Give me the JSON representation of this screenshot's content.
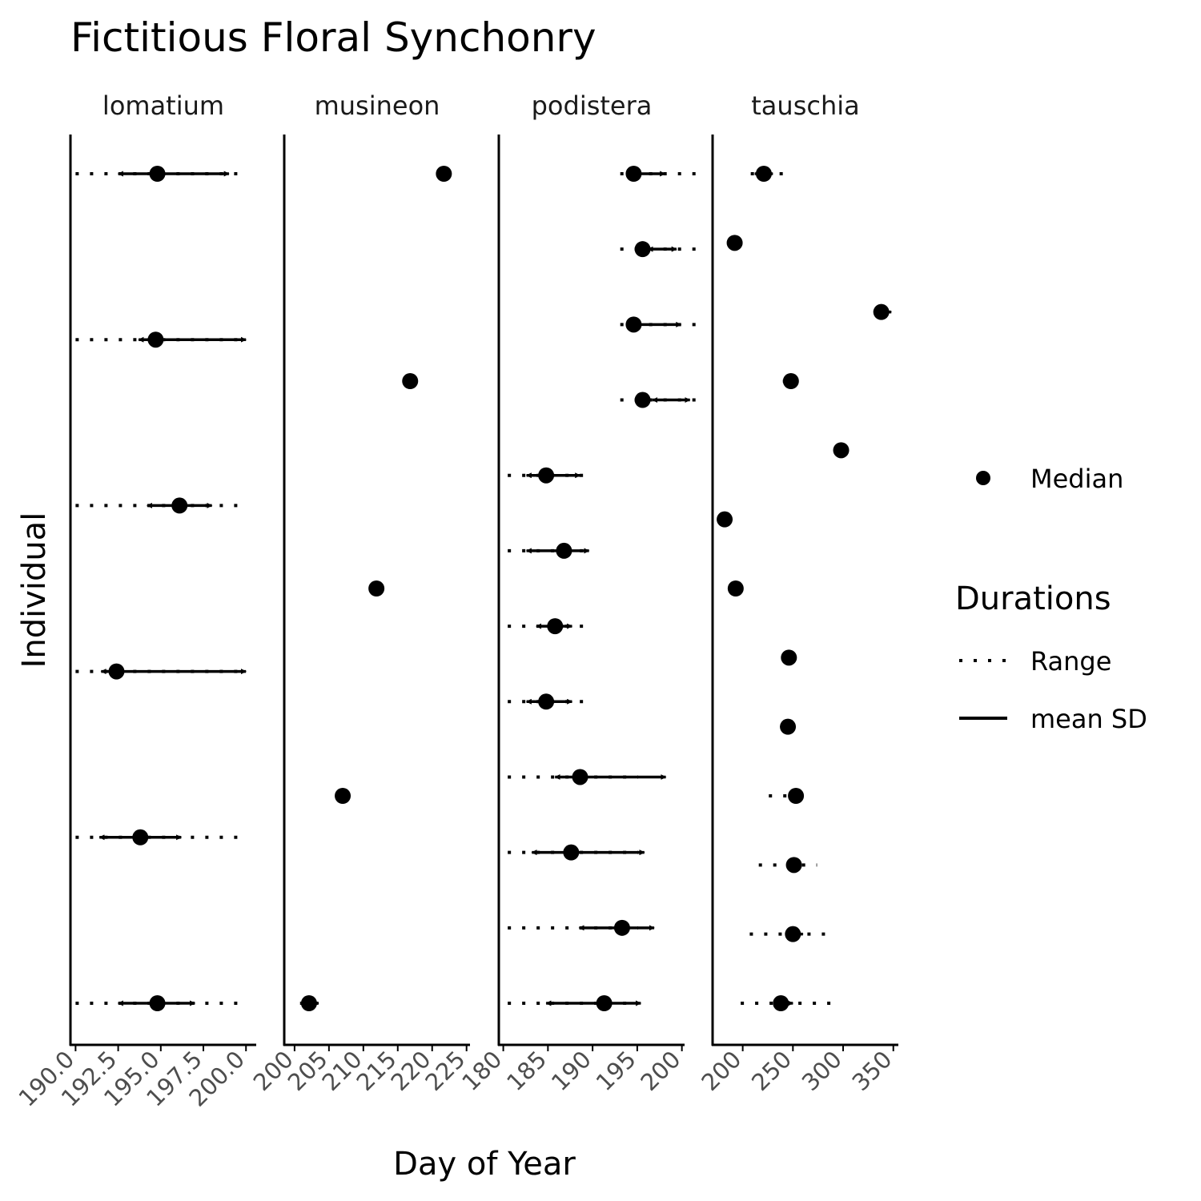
{
  "chart_data": {
    "type": "range-dot",
    "title": "Fictitious Floral Synchonry",
    "xlabel": "Day of Year",
    "ylabel": "Individual",
    "legend": {
      "placement": "right",
      "median_label": "Median",
      "durations_title": "Durations",
      "range_label": "Range",
      "sd_label": "mean SD"
    },
    "panels": [
      {
        "name": "lomatium",
        "xlim": [
          189.7,
          200.6
        ],
        "ticks": [
          190,
          192.5,
          195,
          197.5,
          200
        ],
        "tick_labels": [
          "190.0",
          "192.5",
          "195.0",
          "197.5",
          "200.0"
        ],
        "points": [
          {
            "y": 1,
            "median": 194.8,
            "min": 190,
            "max": 200,
            "sd_lo": 192.5,
            "sd_hi": 197.0
          },
          {
            "y": 2,
            "median": 193.8,
            "min": 190,
            "max": 200,
            "sd_lo": 191.4,
            "sd_hi": 196.2
          },
          {
            "y": 3,
            "median": 192.4,
            "min": 190,
            "max": 200,
            "sd_lo": 191.5,
            "sd_hi": 200
          },
          {
            "y": 4,
            "median": 196.1,
            "min": 190,
            "max": 200,
            "sd_lo": 194.2,
            "sd_hi": 198.0
          },
          {
            "y": 5,
            "median": 194.7,
            "min": 190,
            "max": 200,
            "sd_lo": 193.7,
            "sd_hi": 200
          },
          {
            "y": 6,
            "median": 194.8,
            "min": 190,
            "max": 200,
            "sd_lo": 192.5,
            "sd_hi": 199.0
          }
        ]
      },
      {
        "name": "musineon",
        "xlim": [
          198.5,
          225.5
        ],
        "ticks": [
          200,
          205,
          210,
          215,
          220,
          225
        ],
        "tick_labels": [
          "200",
          "205",
          "210",
          "215",
          "220",
          "225"
        ],
        "points": [
          {
            "y": 1,
            "median": 202.1,
            "min": 200.8,
            "max": 204.0,
            "sd_lo": 201.2,
            "sd_hi": 203.5
          },
          {
            "y": 2,
            "median": 207.0,
            "min": 206.6,
            "max": 207.3,
            "sd_lo": 206.8,
            "sd_hi": 207.2
          },
          {
            "y": 3,
            "median": 211.9,
            "min": 211.5,
            "max": 212.2,
            "sd_lo": 211.7,
            "sd_hi": 212.1
          },
          {
            "y": 4,
            "median": 216.8,
            "min": 216.4,
            "max": 217.1,
            "sd_lo": 216.6,
            "sd_hi": 217.0
          },
          {
            "y": 5,
            "median": 221.7,
            "min": 221.2,
            "max": 222.2,
            "sd_lo": 221.4,
            "sd_hi": 222.0
          }
        ]
      },
      {
        "name": "podistera",
        "xlim": [
          179.5,
          200.3
        ],
        "ticks": [
          180,
          185,
          190,
          195,
          200
        ],
        "tick_labels": [
          "180",
          "185",
          "190",
          "195",
          "200"
        ],
        "points": [
          {
            "y": 1,
            "median": 191.3,
            "min": 180.5,
            "max": 195.1,
            "sd_lo": 184.8,
            "sd_hi": 195.4
          },
          {
            "y": 2,
            "median": 193.3,
            "min": 180.5,
            "max": 195.1,
            "sd_lo": 188.5,
            "sd_hi": 196.9
          },
          {
            "y": 3,
            "median": 187.6,
            "min": 180.5,
            "max": 195.1,
            "sd_lo": 183.2,
            "sd_hi": 195.8
          },
          {
            "y": 4,
            "median": 188.6,
            "min": 180.5,
            "max": 195.1,
            "sd_lo": 185.8,
            "sd_hi": 198.2
          },
          {
            "y": 5,
            "median": 184.8,
            "min": 180.5,
            "max": 189.3,
            "sd_lo": 182.6,
            "sd_hi": 187.7
          },
          {
            "y": 6,
            "median": 185.8,
            "min": 180.5,
            "max": 189.3,
            "sd_lo": 183.7,
            "sd_hi": 187.7
          },
          {
            "y": 7,
            "median": 186.8,
            "min": 180.5,
            "max": 189.3,
            "sd_lo": 182.6,
            "sd_hi": 189.6
          },
          {
            "y": 8,
            "median": 184.8,
            "min": 180.5,
            "max": 189.3,
            "sd_lo": 182.6,
            "sd_hi": 188.6
          },
          {
            "y": 9,
            "median": 195.6,
            "min": 193.1,
            "max": 202.2,
            "sd_lo": 196.7,
            "sd_hi": 200.9
          },
          {
            "y": 10,
            "median": 194.6,
            "min": 193.1,
            "max": 202.2,
            "sd_lo": 194.5,
            "sd_hi": 199.9
          },
          {
            "y": 11,
            "median": 195.6,
            "min": 193.1,
            "max": 202.2,
            "sd_lo": 196.2,
            "sd_hi": 199.4
          },
          {
            "y": 12,
            "median": 194.6,
            "min": 193.1,
            "max": 202.2,
            "sd_lo": 193.8,
            "sd_hi": 198.1
          }
        ]
      },
      {
        "name": "tauschia",
        "xlim": [
          170,
          355
        ],
        "ticks": [
          200,
          250,
          300,
          350
        ],
        "tick_labels": [
          "200",
          "250",
          "300",
          "350"
        ],
        "points": [
          {
            "y": 1,
            "median": 238,
            "min": 198,
            "max": 288,
            "sd_lo": 235,
            "sd_hi": 250
          },
          {
            "y": 2,
            "median": 250,
            "min": 207,
            "max": 283,
            "sd_lo": 245,
            "sd_hi": 260
          },
          {
            "y": 3,
            "median": 251,
            "min": 216,
            "max": 274,
            "sd_lo": 245,
            "sd_hi": 257
          },
          {
            "y": 4,
            "median": 253,
            "min": 226,
            "max": 256,
            "sd_lo": 248,
            "sd_hi": 256
          },
          {
            "y": 5,
            "median": 245,
            "min": 238,
            "max": 247,
            "sd_lo": 240,
            "sd_hi": 247
          },
          {
            "y": 6,
            "median": 246,
            "min": 245,
            "max": 247,
            "sd_lo": 245,
            "sd_hi": 247
          },
          {
            "y": 7,
            "median": 193,
            "min": 193,
            "max": 194,
            "sd_lo": 193,
            "sd_hi": 194
          },
          {
            "y": 8,
            "median": 182,
            "min": 182,
            "max": 183,
            "sd_lo": 182,
            "sd_hi": 183
          },
          {
            "y": 9,
            "median": 298,
            "min": 298,
            "max": 299,
            "sd_lo": 298,
            "sd_hi": 299
          },
          {
            "y": 10,
            "median": 248,
            "min": 240,
            "max": 252,
            "sd_lo": 244,
            "sd_hi": 251
          },
          {
            "y": 11,
            "median": 338,
            "min": 336,
            "max": 347,
            "sd_lo": 337,
            "sd_hi": 348
          },
          {
            "y": 12,
            "median": 192,
            "min": 191,
            "max": 193,
            "sd_lo": 191,
            "sd_hi": 193
          },
          {
            "y": 13,
            "median": 221,
            "min": 208,
            "max": 240,
            "sd_lo": 212,
            "sd_hi": 230
          }
        ]
      }
    ]
  }
}
